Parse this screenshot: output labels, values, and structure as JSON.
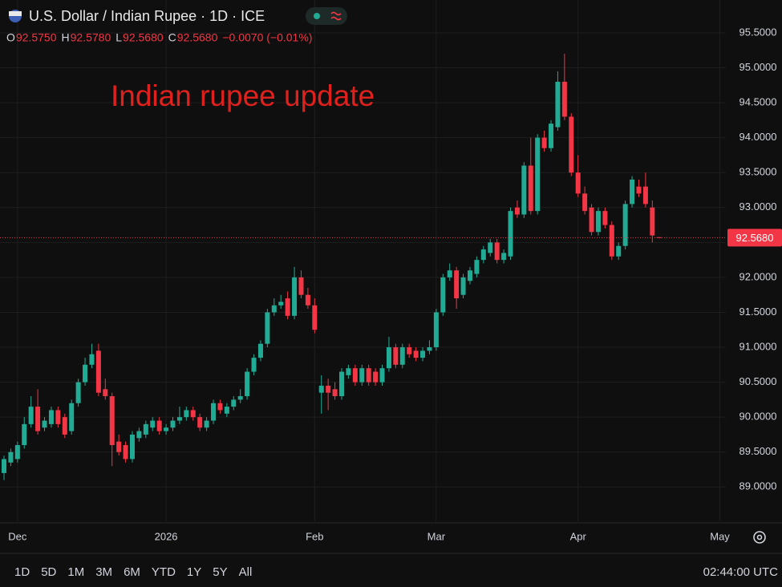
{
  "chart_data": {
    "type": "candlestick",
    "title": "U.S. Dollar / Indian Rupee · 1D · ICE",
    "annotation": "Indian rupee update",
    "ohlc_header": [
      {
        "key": "O",
        "value": 92.575,
        "label": "92.5750"
      },
      {
        "key": "H",
        "value": 92.578,
        "label": "92.5780"
      },
      {
        "key": "L",
        "value": 92.568,
        "label": "92.5680"
      },
      {
        "key": "C",
        "value": 92.568,
        "label": "92.5680"
      }
    ],
    "change": "−0.0070 (−0.01%)",
    "up_color": "#22ab94",
    "down_color": "#f23645",
    "grid": true,
    "ylim": [
      88.51,
      95.97
    ],
    "yticks": [
      {
        "value": 89,
        "label": "89.0000"
      },
      {
        "value": 89.5,
        "label": "89.5000"
      },
      {
        "value": 90,
        "label": "90.0000"
      },
      {
        "value": 90.5,
        "label": "90.5000"
      },
      {
        "value": 91,
        "label": "91.0000"
      },
      {
        "value": 91.5,
        "label": "91.5000"
      },
      {
        "value": 92,
        "label": "92.0000"
      },
      {
        "value": 92.5,
        "label": "92.5000"
      },
      {
        "value": 93,
        "label": "93.0000"
      },
      {
        "value": 93.5,
        "label": "93.5000"
      },
      {
        "value": 94,
        "label": "94.0000"
      },
      {
        "value": 94.5,
        "label": "94.5000"
      },
      {
        "value": 95,
        "label": "95.0000"
      },
      {
        "value": 95.5,
        "label": "95.5000"
      }
    ],
    "categories": [
      null,
      null,
      "Dec",
      null,
      null,
      null,
      null,
      null,
      null,
      null,
      null,
      null,
      null,
      null,
      null,
      null,
      null,
      null,
      null,
      null,
      null,
      null,
      null,
      null,
      "2026",
      null,
      null,
      null,
      null,
      null,
      null,
      null,
      null,
      null,
      null,
      null,
      null,
      null,
      null,
      null,
      null,
      null,
      null,
      null,
      null,
      null,
      "Feb",
      null,
      null,
      null,
      null,
      null,
      null,
      null,
      null,
      null,
      null,
      null,
      null,
      null,
      null,
      null,
      null,
      null,
      "Mar",
      null,
      null,
      null,
      null,
      null,
      null,
      null,
      null,
      null,
      null,
      null,
      null,
      null,
      null,
      null,
      null,
      null,
      null,
      null,
      null,
      "Apr",
      null,
      null,
      null,
      null,
      null,
      null,
      null,
      null,
      null,
      null,
      null,
      null,
      null,
      null,
      null,
      null,
      null,
      null,
      null,
      null,
      "May"
    ],
    "open": [
      89.2,
      89.35,
      89.4,
      89.6,
      89.9,
      90.15,
      89.85,
      89.9,
      90.1,
      90.0,
      89.8,
      90.2,
      90.5,
      90.75,
      90.95,
      90.4,
      90.3,
      89.65,
      89.6,
      89.4,
      89.7,
      89.75,
      89.85,
      89.95,
      89.8,
      89.85,
      89.95,
      90.0,
      90.1,
      90.0,
      89.85,
      89.95,
      90.2,
      90.05,
      90.15,
      90.25,
      90.3,
      90.65,
      90.85,
      91.05,
      91.5,
      91.6,
      91.7,
      91.45,
      92.0,
      91.75,
      91.6,
      90.35,
      90.45,
      90.4,
      90.3,
      90.6,
      90.7,
      90.5,
      90.7,
      90.65,
      90.5,
      90.7,
      91.0,
      90.75,
      91.0,
      90.95,
      90.85,
      90.95,
      91.0,
      91.5,
      92.0,
      92.1,
      91.75,
      91.95,
      92.05,
      92.25,
      92.35,
      92.5,
      92.25,
      92.3,
      93.0,
      92.9,
      93.6,
      92.95,
      94.0,
      93.85,
      94.15,
      94.8,
      94.3,
      93.5,
      93.2,
      93.0,
      92.65,
      92.95,
      92.75,
      92.3,
      92.45,
      93.05,
      93.3,
      93.3,
      93.0,
      92.575,
      null,
      null,
      null,
      null,
      null,
      null,
      null,
      null,
      null
    ],
    "high": [
      89.45,
      89.55,
      89.65,
      90.0,
      90.3,
      90.4,
      90.0,
      90.15,
      90.15,
      90.05,
      90.25,
      90.55,
      90.85,
      91.05,
      91.05,
      90.55,
      90.35,
      89.75,
      89.65,
      89.8,
      89.85,
      89.95,
      90.0,
      90.0,
      89.9,
      90.0,
      90.15,
      90.15,
      90.15,
      90.05,
      90.0,
      90.25,
      90.25,
      90.2,
      90.3,
      90.4,
      90.7,
      90.9,
      91.1,
      91.55,
      91.7,
      91.75,
      91.8,
      92.15,
      92.1,
      91.85,
      91.7,
      90.6,
      90.55,
      90.5,
      90.7,
      90.75,
      90.75,
      90.75,
      90.75,
      90.7,
      90.75,
      91.15,
      91.05,
      91.05,
      91.05,
      91.0,
      91.0,
      91.1,
      91.55,
      92.05,
      92.2,
      92.15,
      92.05,
      92.15,
      92.3,
      92.45,
      92.55,
      92.55,
      92.4,
      93.0,
      93.1,
      93.65,
      94.0,
      94.05,
      94.1,
      94.25,
      94.95,
      95.2,
      94.35,
      93.75,
      93.3,
      93.05,
      93.0,
      93.0,
      92.8,
      92.5,
      93.1,
      93.45,
      93.4,
      93.5,
      93.1,
      92.578,
      null,
      null,
      null,
      null,
      null,
      null,
      null,
      null,
      null
    ],
    "low": [
      89.1,
      89.3,
      89.35,
      89.55,
      89.85,
      89.75,
      89.8,
      89.85,
      89.85,
      89.7,
      89.75,
      90.15,
      90.45,
      90.7,
      90.3,
      90.25,
      89.3,
      89.45,
      89.35,
      89.35,
      89.65,
      89.7,
      89.8,
      89.75,
      89.75,
      89.8,
      89.9,
      89.95,
      89.95,
      89.8,
      89.8,
      89.9,
      90.05,
      90.0,
      90.1,
      90.2,
      90.25,
      90.6,
      90.8,
      91.0,
      91.45,
      91.55,
      91.4,
      91.4,
      91.7,
      91.55,
      91.2,
      90.05,
      90.1,
      90.25,
      90.25,
      90.55,
      90.45,
      90.45,
      90.45,
      90.45,
      90.45,
      90.65,
      90.7,
      90.7,
      90.85,
      90.8,
      90.8,
      90.9,
      90.95,
      91.45,
      91.95,
      91.55,
      91.7,
      91.9,
      92.0,
      92.2,
      92.3,
      92.2,
      92.2,
      92.25,
      92.85,
      92.85,
      92.9,
      92.9,
      93.8,
      93.8,
      94.1,
      94.25,
      93.45,
      93.15,
      92.9,
      92.6,
      92.6,
      92.7,
      92.25,
      92.25,
      92.4,
      93.0,
      93.15,
      93.0,
      92.5,
      92.568,
      null,
      null,
      null,
      null,
      null,
      null,
      null,
      null,
      null
    ],
    "close": [
      89.4,
      89.5,
      89.6,
      89.9,
      90.15,
      89.8,
      89.95,
      90.1,
      89.9,
      89.75,
      90.2,
      90.5,
      90.75,
      90.9,
      90.35,
      90.3,
      89.6,
      89.5,
      89.4,
      89.75,
      89.8,
      89.9,
      89.95,
      89.8,
      89.85,
      89.95,
      90.0,
      90.1,
      90.0,
      89.85,
      89.95,
      90.2,
      90.1,
      90.15,
      90.25,
      90.3,
      90.65,
      90.85,
      91.05,
      91.5,
      91.6,
      91.65,
      91.45,
      92.0,
      91.75,
      91.6,
      91.25,
      90.45,
      90.35,
      90.3,
      90.65,
      90.7,
      90.5,
      90.7,
      90.5,
      90.5,
      90.7,
      91.0,
      90.75,
      91.0,
      90.9,
      90.85,
      90.95,
      91.0,
      91.5,
      92.0,
      92.1,
      91.7,
      92.0,
      92.1,
      92.25,
      92.4,
      92.5,
      92.25,
      92.35,
      92.95,
      92.9,
      93.6,
      92.95,
      94.0,
      93.85,
      94.2,
      94.8,
      94.3,
      93.5,
      93.2,
      92.95,
      92.65,
      92.95,
      92.75,
      92.3,
      92.45,
      93.05,
      93.4,
      93.2,
      93.05,
      92.6,
      92.568,
      null,
      null,
      null,
      null,
      null,
      null,
      null,
      null,
      null
    ]
  },
  "toolbar": {
    "ranges": [
      "1D",
      "5D",
      "1M",
      "3M",
      "6M",
      "YTD",
      "1Y",
      "5Y",
      "All"
    ],
    "clock": "02:44:00 UTC"
  }
}
